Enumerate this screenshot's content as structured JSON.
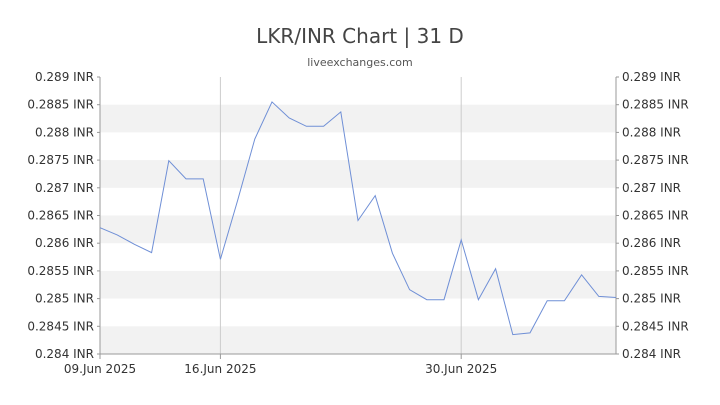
{
  "chart_data": {
    "type": "line",
    "title": "LKR/INR Chart | 31 D",
    "subtitle": "liveexchanges.com",
    "y_unit": "INR",
    "ylim": [
      0.284,
      0.289
    ],
    "y_ticks": [
      "0.289 INR",
      "0.2885 INR",
      "0.288 INR",
      "0.2875 INR",
      "0.287 INR",
      "0.2865 INR",
      "0.286 INR",
      "0.2855 INR",
      "0.285 INR",
      "0.2845 INR",
      "0.284 INR"
    ],
    "y_tick_values": [
      0.289,
      0.2885,
      0.288,
      0.2875,
      0.287,
      0.2865,
      0.286,
      0.2855,
      0.285,
      0.2845,
      0.284
    ],
    "x_ticks": [
      {
        "label": "09.Jun 2025",
        "x": "2025-06-09"
      },
      {
        "label": "16.Jun 2025",
        "x": "2025-06-16"
      },
      {
        "label": "30.Jun 2025",
        "x": "2025-06-30"
      }
    ],
    "x_range": [
      "2025-06-09",
      "2025-07-09"
    ],
    "line_color": "#6f8fd6",
    "series": [
      {
        "values": [
          [
            "2025-06-09",
            0.28628
          ],
          [
            "2025-06-10",
            0.28615
          ],
          [
            "2025-06-11",
            0.28598
          ],
          [
            "2025-06-12",
            0.28583
          ],
          [
            "2025-06-13",
            0.28749
          ],
          [
            "2025-06-14",
            0.28716
          ],
          [
            "2025-06-15",
            0.28716
          ],
          [
            "2025-06-16",
            0.28571
          ],
          [
            "2025-06-17",
            0.28677
          ],
          [
            "2025-06-18",
            0.28788
          ],
          [
            "2025-06-19",
            0.28855
          ],
          [
            "2025-06-20",
            0.28826
          ],
          [
            "2025-06-21",
            0.28811
          ],
          [
            "2025-06-22",
            0.28811
          ],
          [
            "2025-06-23",
            0.28837
          ],
          [
            "2025-06-24",
            0.28641
          ],
          [
            "2025-06-25",
            0.28686
          ],
          [
            "2025-06-26",
            0.28582
          ],
          [
            "2025-06-27",
            0.28516
          ],
          [
            "2025-06-28",
            0.28498
          ],
          [
            "2025-06-29",
            0.28498
          ],
          [
            "2025-06-30",
            0.28606
          ],
          [
            "2025-07-01",
            0.28498
          ],
          [
            "2025-07-02",
            0.28554
          ],
          [
            "2025-07-03",
            0.28435
          ],
          [
            "2025-07-04",
            0.28438
          ],
          [
            "2025-07-05",
            0.28496
          ],
          [
            "2025-07-06",
            0.28496
          ],
          [
            "2025-07-07",
            0.28543
          ],
          [
            "2025-07-08",
            0.28504
          ],
          [
            "2025-07-09",
            0.28502
          ]
        ]
      }
    ]
  }
}
